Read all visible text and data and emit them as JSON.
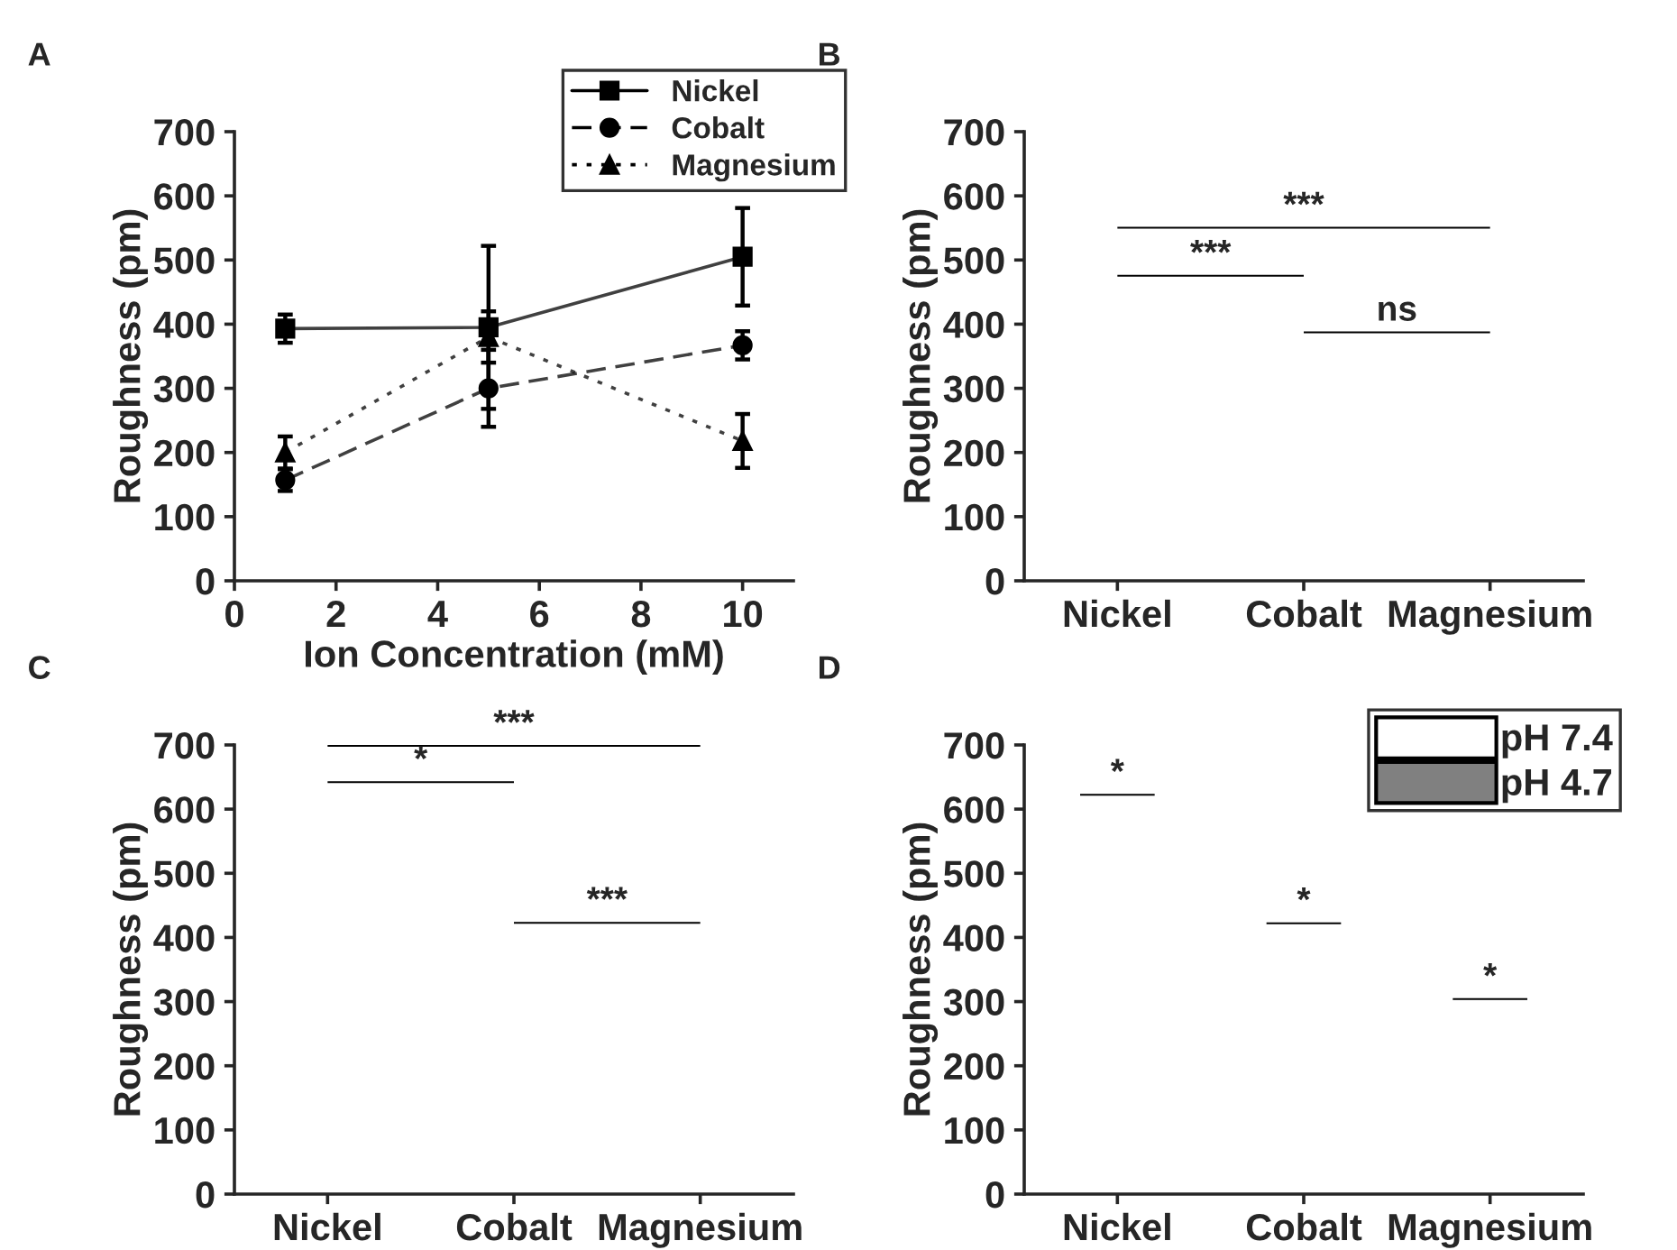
{
  "chart_data": [
    {
      "type": "line",
      "title": "A",
      "xlabel": "Ion Concentration (mM)",
      "ylabel": "Roughness (pm)",
      "xlim": [
        0,
        11
      ],
      "xticks": [
        0,
        2,
        4,
        6,
        8,
        10
      ],
      "ylim": [
        0,
        700
      ],
      "yticks": [
        0,
        100,
        200,
        300,
        400,
        500,
        600,
        700
      ],
      "legend": "top right",
      "series": [
        {
          "name": "Nickel",
          "color": "#000000",
          "marker": "square",
          "line_style": "solid",
          "x": [
            1,
            5,
            10
          ],
          "values": [
            393,
            395,
            505
          ],
          "errors": [
            22,
            127,
            76
          ]
        },
        {
          "name": "Cobalt",
          "color": "#000000",
          "marker": "circle",
          "line_style": "dashed",
          "x": [
            1,
            5,
            10
          ],
          "values": [
            157,
            300,
            367
          ],
          "errors": [
            17,
            60,
            22
          ]
        },
        {
          "name": "Magnesium",
          "color": "#000000",
          "marker": "triangle",
          "line_style": "dotted",
          "x": [
            1,
            5,
            10
          ],
          "values": [
            200,
            380,
            218
          ],
          "errors": [
            25,
            40,
            42
          ]
        }
      ]
    },
    {
      "type": "bar",
      "title": "B",
      "ylabel": "Roughness (pm)",
      "categories": [
        "Nickel",
        "Cobalt",
        "Magnesium"
      ],
      "ylim": [
        0,
        700
      ],
      "yticks": [
        0,
        100,
        200,
        300,
        400,
        500,
        600,
        700
      ],
      "values": [
        null,
        null,
        null
      ],
      "annotations": [
        "***",
        "***",
        "ns"
      ]
    },
    {
      "type": "bar",
      "title": "C",
      "ylabel": "Roughness (pm)",
      "categories": [
        "Nickel",
        "Cobalt",
        "Magnesium"
      ],
      "ylim": [
        0,
        700
      ],
      "yticks": [
        0,
        100,
        200,
        300,
        400,
        500,
        600,
        700
      ],
      "values": [
        null,
        null,
        null
      ],
      "annotations": [
        "***",
        "*",
        "***"
      ]
    },
    {
      "type": "bar",
      "title": "D",
      "ylabel": "Roughness (pm)",
      "categories": [
        "Nickel",
        "Cobalt",
        "Magnesium"
      ],
      "ylim": [
        0,
        700
      ],
      "yticks": [
        0,
        100,
        200,
        300,
        400,
        500,
        600,
        700
      ],
      "legend": "top right",
      "series": [
        {
          "name": "pH 7.4",
          "color": "#ffffff",
          "values": [
            null,
            null,
            null
          ]
        },
        {
          "name": "pH 4.7",
          "color": "#808080",
          "values": [
            null,
            null,
            null
          ]
        }
      ],
      "annotations": [
        "*",
        "*",
        "*"
      ]
    }
  ]
}
